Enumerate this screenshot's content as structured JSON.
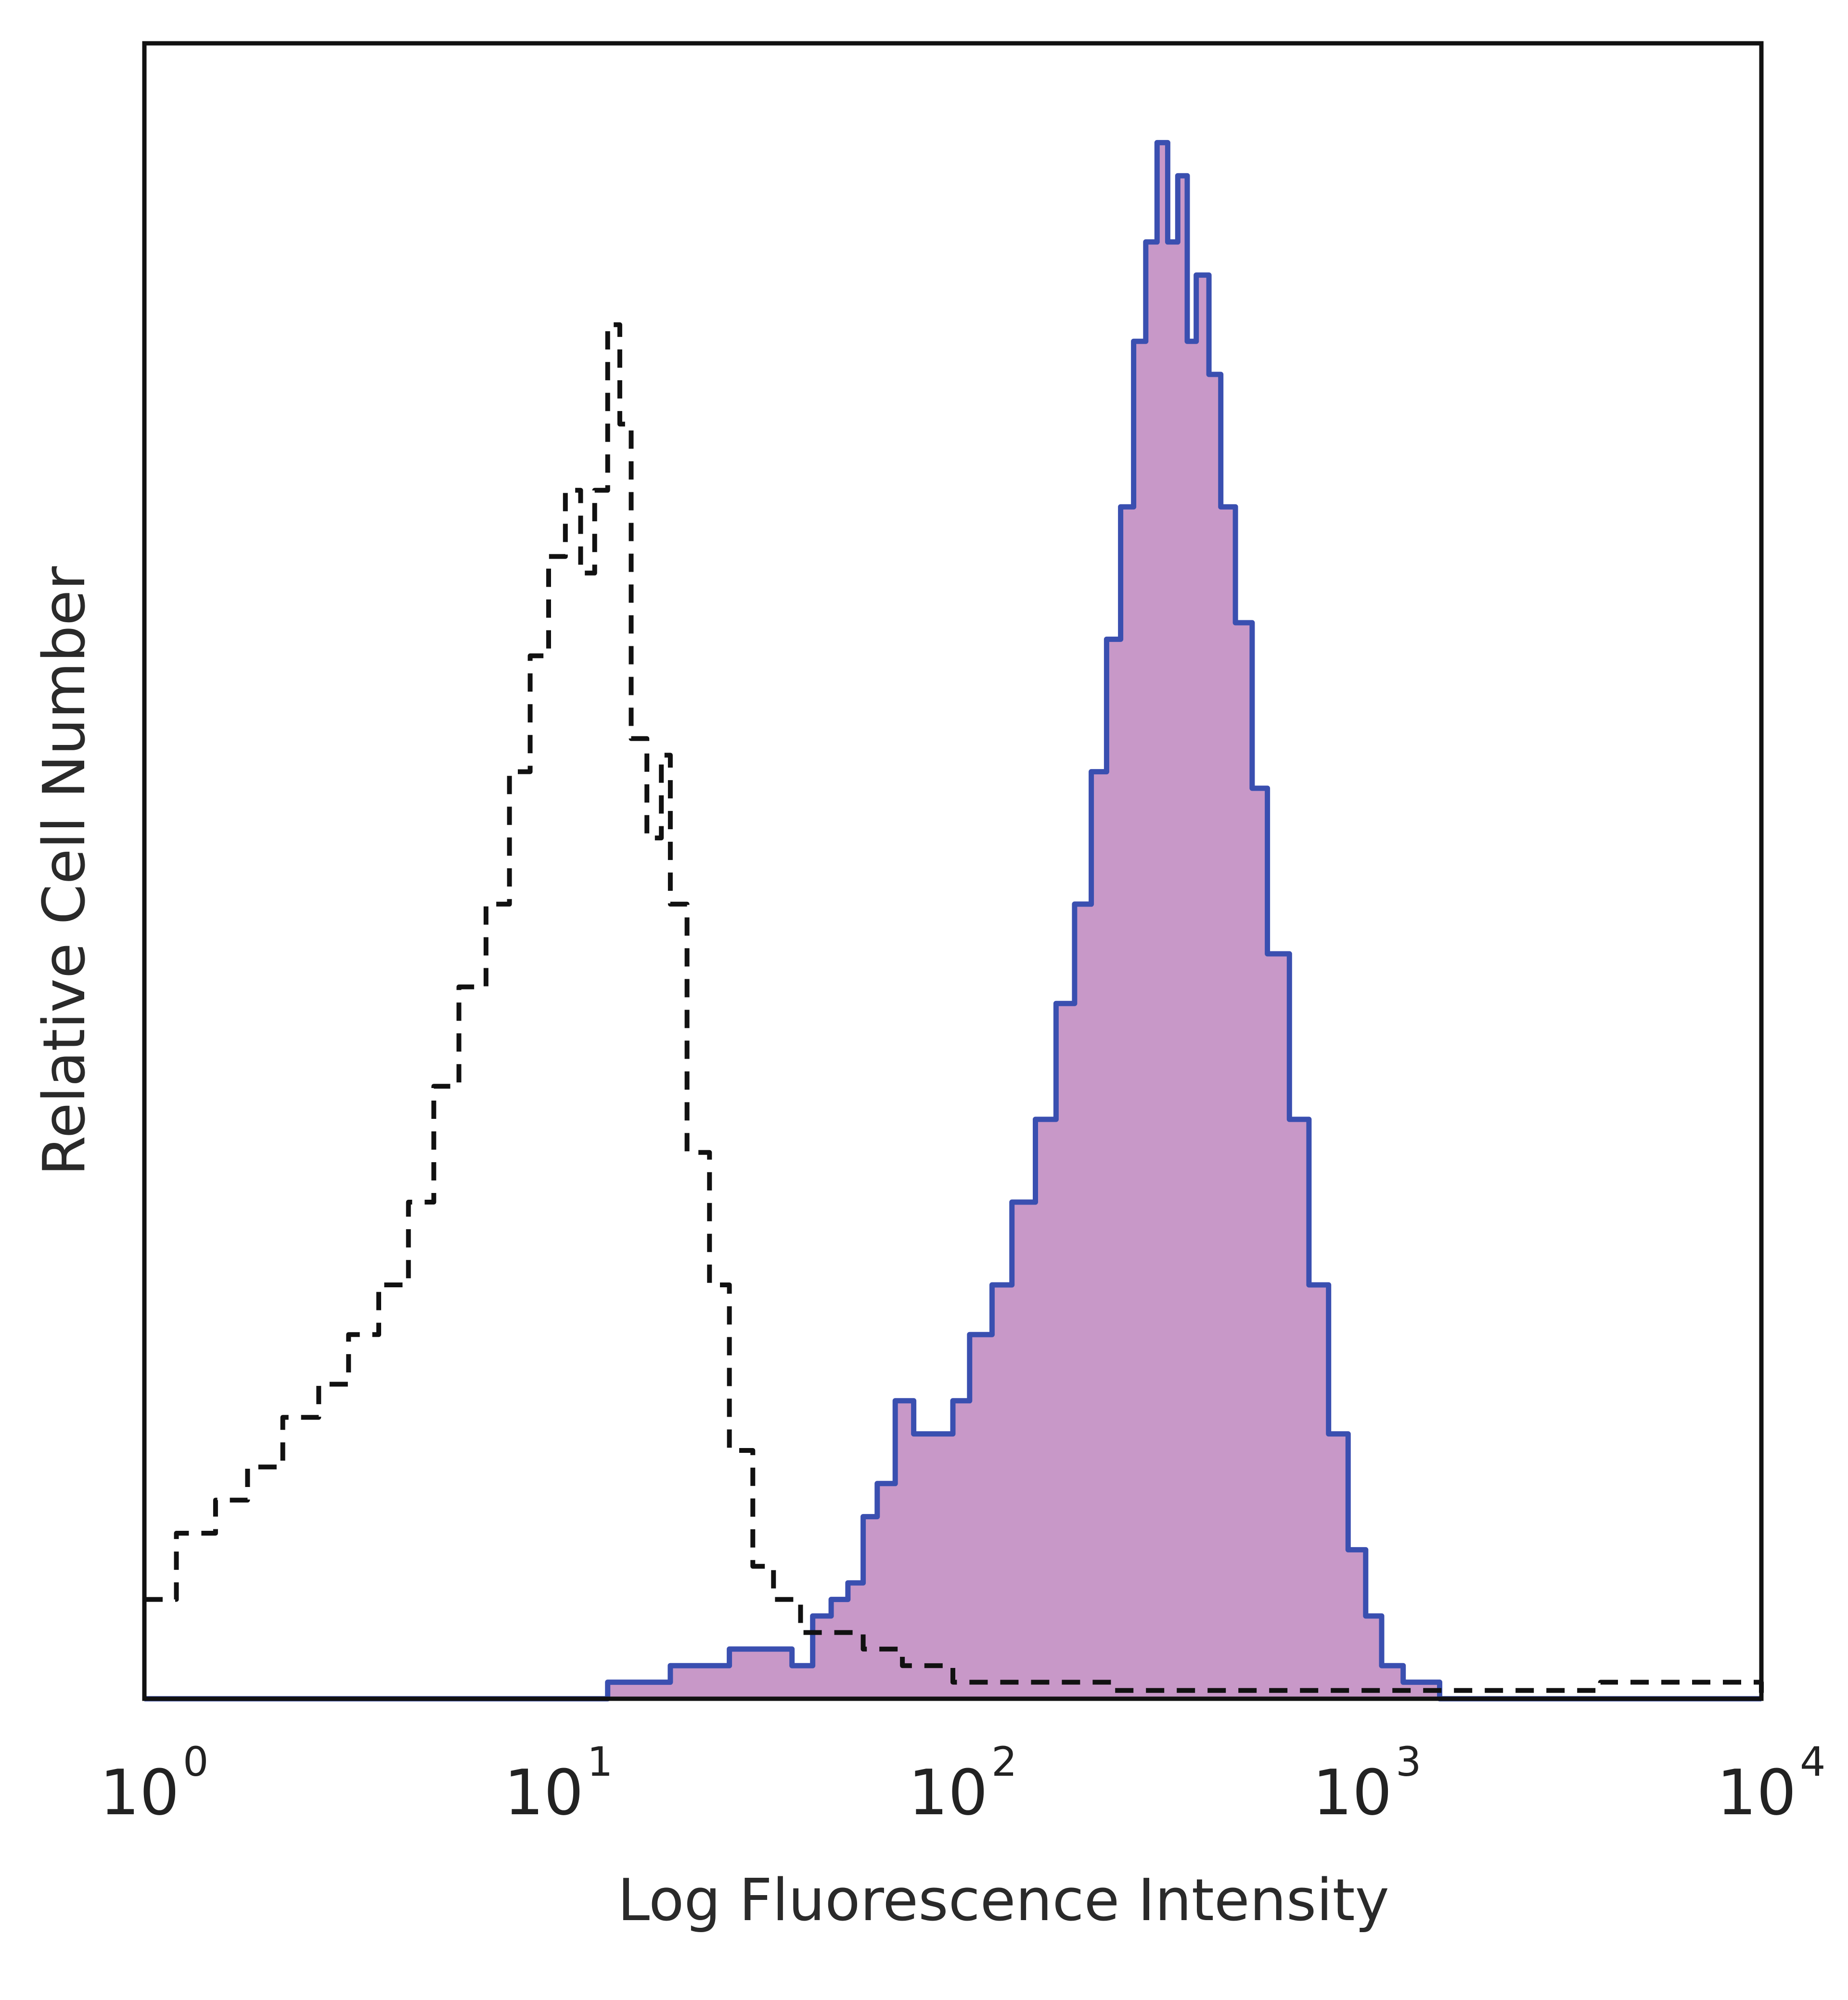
{
  "chart_data": {
    "type": "area",
    "xlabel": "Log Fluorescence Intensity",
    "ylabel": "Relative Cell Number",
    "x_scale": "log",
    "xlim": [
      1,
      10000
    ],
    "ylim": [
      0,
      1.0
    ],
    "x_ticks": [
      {
        "value": 1,
        "base": "10",
        "exp": "0"
      },
      {
        "value": 10,
        "base": "10",
        "exp": "1"
      },
      {
        "value": 100,
        "base": "10",
        "exp": "2"
      },
      {
        "value": 1000,
        "base": "10",
        "exp": "3"
      },
      {
        "value": 10000,
        "base": "10",
        "exp": "4"
      }
    ],
    "grid": false,
    "series": [
      {
        "style": "dashed-outline",
        "color": "#111111",
        "points": [
          [
            1.0,
            0.06
          ],
          [
            1.2,
            0.1
          ],
          [
            1.5,
            0.12
          ],
          [
            1.8,
            0.14
          ],
          [
            2.2,
            0.17
          ],
          [
            2.7,
            0.19
          ],
          [
            3.2,
            0.22
          ],
          [
            3.8,
            0.25
          ],
          [
            4.5,
            0.3
          ],
          [
            5.2,
            0.37
          ],
          [
            6.0,
            0.43
          ],
          [
            7.0,
            0.48
          ],
          [
            8.0,
            0.56
          ],
          [
            9.0,
            0.63
          ],
          [
            10.0,
            0.69
          ],
          [
            11.0,
            0.73
          ],
          [
            12.0,
            0.68
          ],
          [
            13.0,
            0.73
          ],
          [
            14.0,
            0.83
          ],
          [
            15.0,
            0.77
          ],
          [
            16.0,
            0.58
          ],
          [
            17.5,
            0.52
          ],
          [
            19.0,
            0.57
          ],
          [
            20.0,
            0.48
          ],
          [
            22.0,
            0.33
          ],
          [
            25.0,
            0.25
          ],
          [
            28.0,
            0.15
          ],
          [
            32.0,
            0.08
          ],
          [
            36.0,
            0.06
          ],
          [
            42.0,
            0.04
          ],
          [
            50.0,
            0.04
          ],
          [
            60.0,
            0.03
          ],
          [
            75.0,
            0.02
          ],
          [
            100.0,
            0.01
          ],
          [
            150.0,
            0.01
          ],
          [
            250.0,
            0.005
          ],
          [
            500.0,
            0.005
          ],
          [
            1000.0,
            0.005
          ],
          [
            4000.0,
            0.01
          ],
          [
            10000.0,
            0.0
          ]
        ]
      },
      {
        "style": "filled",
        "color": "#3a4fb0",
        "fill": "#c898c8",
        "points": [
          [
            1.0,
            0.0
          ],
          [
            3.0,
            0.0
          ],
          [
            10.0,
            0.0
          ],
          [
            14.0,
            0.01
          ],
          [
            20.0,
            0.02
          ],
          [
            25.0,
            0.02
          ],
          [
            28.0,
            0.03
          ],
          [
            35.0,
            0.03
          ],
          [
            40.0,
            0.02
          ],
          [
            45.0,
            0.05
          ],
          [
            50.0,
            0.06
          ],
          [
            55.0,
            0.07
          ],
          [
            60.0,
            0.11
          ],
          [
            65.0,
            0.13
          ],
          [
            72.0,
            0.18
          ],
          [
            80.0,
            0.16
          ],
          [
            90.0,
            0.16
          ],
          [
            100.0,
            0.18
          ],
          [
            110.0,
            0.22
          ],
          [
            125.0,
            0.25
          ],
          [
            140.0,
            0.3
          ],
          [
            160.0,
            0.35
          ],
          [
            180.0,
            0.42
          ],
          [
            200.0,
            0.48
          ],
          [
            220.0,
            0.56
          ],
          [
            240.0,
            0.64
          ],
          [
            260.0,
            0.72
          ],
          [
            280.0,
            0.82
          ],
          [
            300.0,
            0.88
          ],
          [
            320.0,
            0.94
          ],
          [
            340.0,
            0.88
          ],
          [
            360.0,
            0.92
          ],
          [
            380.0,
            0.82
          ],
          [
            400.0,
            0.86
          ],
          [
            430.0,
            0.8
          ],
          [
            460.0,
            0.72
          ],
          [
            500.0,
            0.65
          ],
          [
            550.0,
            0.55
          ],
          [
            600.0,
            0.45
          ],
          [
            680.0,
            0.35
          ],
          [
            760.0,
            0.25
          ],
          [
            850.0,
            0.16
          ],
          [
            950.0,
            0.09
          ],
          [
            1050.0,
            0.05
          ],
          [
            1150.0,
            0.02
          ],
          [
            1300.0,
            0.01
          ],
          [
            1600.0,
            0.0
          ],
          [
            10000.0,
            0.0
          ]
        ]
      }
    ]
  }
}
